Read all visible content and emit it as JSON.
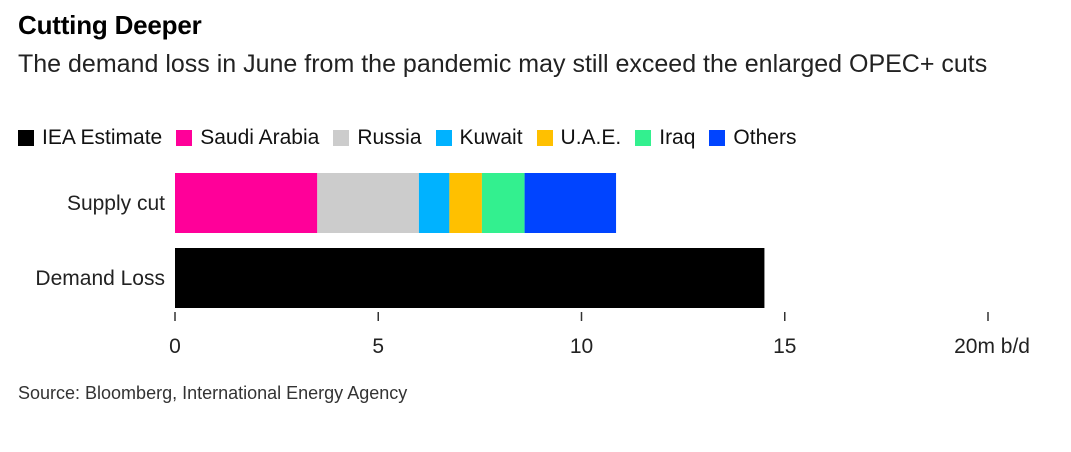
{
  "header": {
    "title": "Cutting Deeper",
    "subtitle": "The demand loss in June from the pandemic may still exceed the enlarged OPEC+ cuts"
  },
  "legend": [
    {
      "label": "IEA Estimate",
      "color": "#000000"
    },
    {
      "label": "Saudi Arabia",
      "color": "#ff0099"
    },
    {
      "label": "Russia",
      "color": "#cccccc"
    },
    {
      "label": "Kuwait",
      "color": "#00b2ff"
    },
    {
      "label": "U.A.E.",
      "color": "#ffc000"
    },
    {
      "label": "Iraq",
      "color": "#33f08f"
    },
    {
      "label": "Others",
      "color": "#0044ff"
    }
  ],
  "chart_data": {
    "type": "bar",
    "orientation": "horizontal",
    "stacked": true,
    "title": "Cutting Deeper",
    "subtitle": "The demand loss in June from the pandemic may still exceed the enlarged OPEC+ cuts",
    "categories": [
      "Supply cut",
      "Demand Loss"
    ],
    "series": [
      {
        "name": "IEA Estimate",
        "color": "#000000",
        "values": [
          0,
          14.5
        ]
      },
      {
        "name": "Saudi Arabia",
        "color": "#ff0099",
        "values": [
          3.5,
          0
        ]
      },
      {
        "name": "Russia",
        "color": "#cccccc",
        "values": [
          2.5,
          0
        ]
      },
      {
        "name": "Kuwait",
        "color": "#00b2ff",
        "values": [
          0.75,
          0
        ]
      },
      {
        "name": "U.A.E.",
        "color": "#ffc000",
        "values": [
          0.8,
          0
        ]
      },
      {
        "name": "Iraq",
        "color": "#33f08f",
        "values": [
          1.05,
          0
        ]
      },
      {
        "name": "Others",
        "color": "#0044ff",
        "values": [
          2.25,
          0
        ]
      }
    ],
    "xlim": [
      0,
      20
    ],
    "x_ticks": [
      {
        "value": 0,
        "label": "0"
      },
      {
        "value": 5,
        "label": "5"
      },
      {
        "value": 10,
        "label": "10"
      },
      {
        "value": 15,
        "label": "15"
      },
      {
        "value": 20,
        "label": "20m b/d"
      }
    ],
    "legend_position": "top",
    "grid": false
  },
  "source": "Source: Bloomberg, International Energy Agency"
}
